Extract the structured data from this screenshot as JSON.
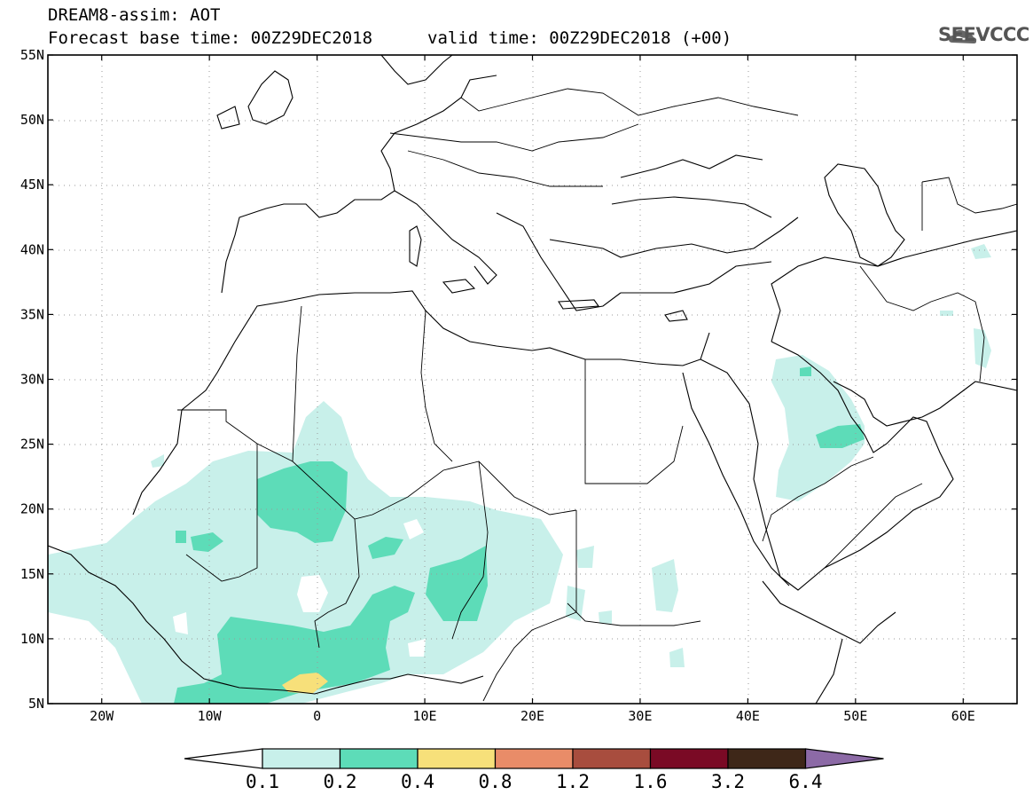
{
  "header": {
    "title_line1": "DREAM8-assim: AOT",
    "title_line2": "Forecast base time: 00Z29DEC2018",
    "valid_time": "valid time: 00Z29DEC2018 (+00)",
    "logo_text": "SEEVCCC"
  },
  "map": {
    "lon_range": [
      -25,
      65
    ],
    "lat_range": [
      5,
      55
    ],
    "x_ticks": [
      {
        "lon": -20,
        "label": "20W"
      },
      {
        "lon": -10,
        "label": "10W"
      },
      {
        "lon": 0,
        "label": "0"
      },
      {
        "lon": 10,
        "label": "10E"
      },
      {
        "lon": 20,
        "label": "20E"
      },
      {
        "lon": 30,
        "label": "30E"
      },
      {
        "lon": 40,
        "label": "40E"
      },
      {
        "lon": 50,
        "label": "50E"
      },
      {
        "lon": 60,
        "label": "60E"
      }
    ],
    "y_ticks": [
      {
        "lat": 55,
        "label": "55N"
      },
      {
        "lat": 50,
        "label": "50N"
      },
      {
        "lat": 45,
        "label": "45N"
      },
      {
        "lat": 40,
        "label": "40N"
      },
      {
        "lat": 35,
        "label": "35N"
      },
      {
        "lat": 30,
        "label": "30N"
      },
      {
        "lat": 25,
        "label": "25N"
      },
      {
        "lat": 20,
        "label": "20N"
      },
      {
        "lat": 15,
        "label": "15N"
      },
      {
        "lat": 10,
        "label": "10N"
      },
      {
        "lat": 5,
        "label": "5N"
      }
    ]
  },
  "colorbar": {
    "levels": [
      "0.1",
      "0.2",
      "0.4",
      "0.8",
      "1.2",
      "1.6",
      "3.2",
      "6.4"
    ],
    "colors": [
      "#ffffff",
      "#c8f0ea",
      "#5ddcb8",
      "#f7e07a",
      "#e98c68",
      "#a84d3e",
      "#7a0a25",
      "#3e2718",
      "#8c6aa6"
    ]
  }
}
